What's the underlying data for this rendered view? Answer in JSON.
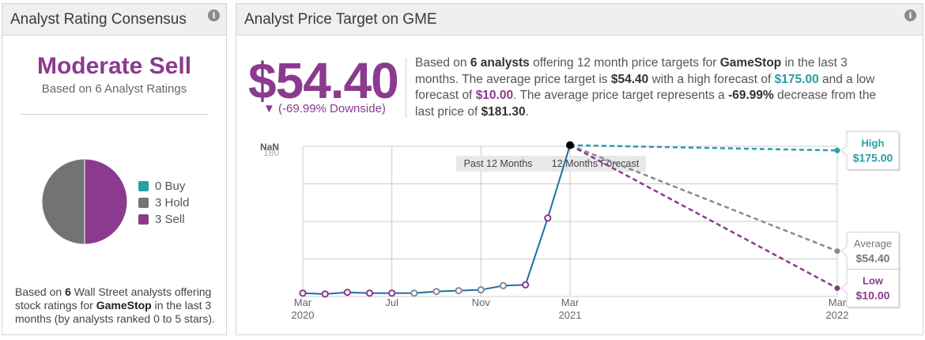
{
  "left_panel": {
    "title": "Analyst Rating Consensus",
    "info_icon_text": "i",
    "consensus": "Moderate Sell",
    "consensus_sub": "Based on 6 Analyst Ratings",
    "pie": [
      {
        "label": "0 Buy",
        "value": 0,
        "color": "#2a9da6"
      },
      {
        "label": "3 Hold",
        "value": 3,
        "color": "#737373"
      },
      {
        "label": "3 Sell",
        "value": 3,
        "color": "#8b3a8f"
      }
    ],
    "note_1": "Based on ",
    "note_count": "6",
    "note_2": " Wall Street analysts offering stock ratings for ",
    "note_company": "GameStop",
    "note_3": " in the last 3 months (by analysts ranked 0 to 5 stars)."
  },
  "right_panel": {
    "title": "Analyst Price Target on GME",
    "info_icon_text": "i",
    "big_price": "$54.40",
    "downside": "▼ (-69.99% Downside)",
    "summary": {
      "t1": "Based on ",
      "analysts": "6 analysts",
      "t2": " offering 12 month price targets for ",
      "company": "GameStop",
      "t3": " in the last 3 months. The average price target is ",
      "avg": "$54.40",
      "t4": " with a high forecast of ",
      "high": "$175.00",
      "t5": " and a low forecast of ",
      "low": "$10.00",
      "t6": ". The average price target represents a ",
      "pct": "-69.99%",
      "t7": " decrease from the last price of ",
      "last": "$181.30",
      "t8": "."
    }
  },
  "chart_data": {
    "type": "line",
    "y_tick_labels": [
      "NaN",
      "180"
    ],
    "ylim": [
      0,
      180
    ],
    "x_tick_labels": [
      {
        "top": "Mar",
        "bottom": "2020",
        "x": 0
      },
      {
        "top": "Jul",
        "bottom": "",
        "x": 4
      },
      {
        "top": "Nov",
        "bottom": "",
        "x": 8
      },
      {
        "top": "Mar",
        "bottom": "2021",
        "x": 12
      },
      {
        "top": "Mar",
        "bottom": "2022",
        "x": 24
      }
    ],
    "period_labels": [
      "Past 12 Months",
      "12 Months Forecast"
    ],
    "history": [
      {
        "x": 0.0,
        "y": 4,
        "marker": "purple"
      },
      {
        "x": 1.0,
        "y": 3,
        "marker": "purple"
      },
      {
        "x": 2.0,
        "y": 5,
        "marker": "purple"
      },
      {
        "x": 3.0,
        "y": 4,
        "marker": "purple"
      },
      {
        "x": 4.0,
        "y": 4,
        "marker": "purple"
      },
      {
        "x": 5.0,
        "y": 4,
        "marker": "gray"
      },
      {
        "x": 6.0,
        "y": 6,
        "marker": "gray"
      },
      {
        "x": 7.0,
        "y": 7,
        "marker": "gray"
      },
      {
        "x": 8.0,
        "y": 8,
        "marker": "gray"
      },
      {
        "x": 9.0,
        "y": 13,
        "marker": "gray"
      },
      {
        "x": 10.0,
        "y": 14,
        "marker": "purple"
      },
      {
        "x": 11.0,
        "y": 94,
        "marker": "purple"
      },
      {
        "x": 12.0,
        "y": 181.3,
        "marker": "black"
      }
    ],
    "forecasts": [
      {
        "name": "High",
        "value": 175.0,
        "label": "$175.00",
        "color": "#2a9da6"
      },
      {
        "name": "Average",
        "value": 54.4,
        "label": "$54.40",
        "color": "#8a8a8a"
      },
      {
        "name": "Low",
        "value": 10.0,
        "label": "$10.00",
        "color": "#8b3a8f"
      }
    ]
  }
}
